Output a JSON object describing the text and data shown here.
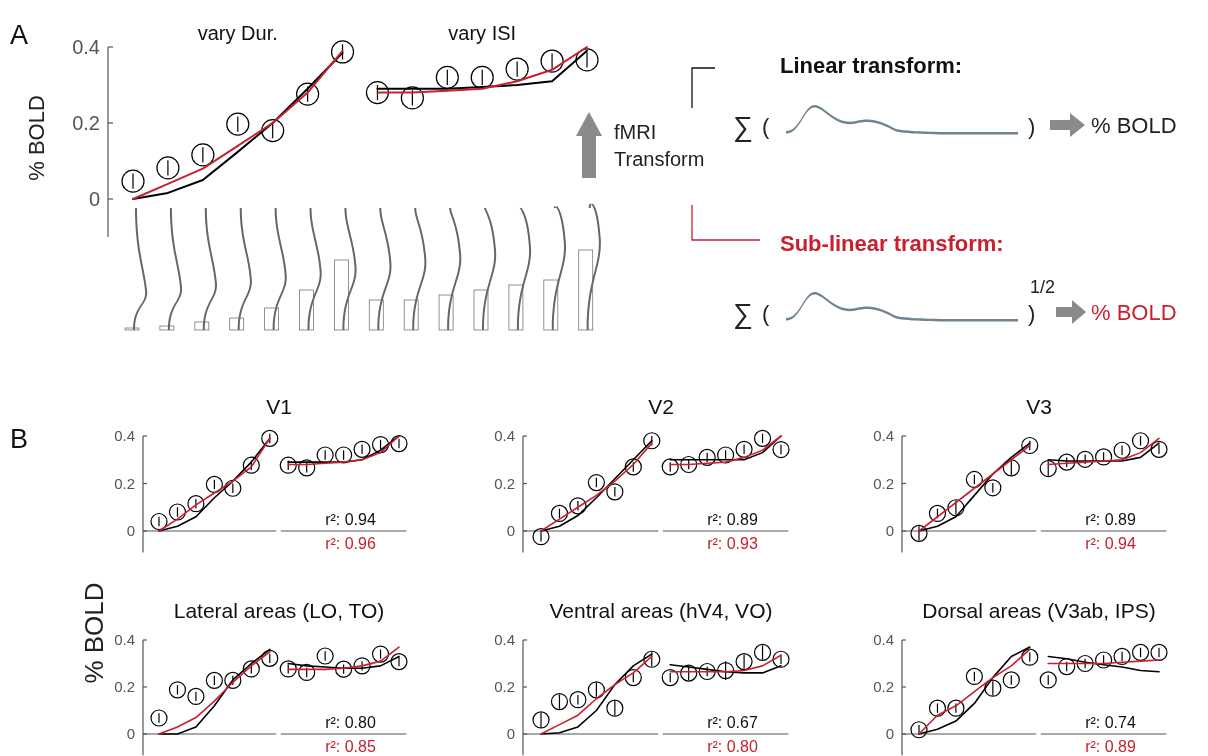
{
  "chart_data": [
    {
      "type": "scatter",
      "ylabel": "% BOLD",
      "annotations": [
        "A",
        "vary Dur.",
        "vary ISI"
      ],
      "categories": [
        null,
        null,
        null,
        null,
        null,
        null,
        null,
        null,
        null,
        null,
        null,
        null,
        null,
        null
      ],
      "ylim": [
        -0.1,
        0.4
      ],
      "yticks": [
        0,
        0.2,
        0.4
      ],
      "series": [
        {
          "type": "scatter",
          "marker": "circle",
          "color": "#000000",
          "values": [
            0.047,
            0.082,
            0.116,
            0.197,
            0.18,
            0.276,
            0.387,
            null,
            null,
            null,
            null,
            null,
            null,
            null
          ],
          "errors": [
            0.02,
            0.02,
            0.02,
            0.02,
            0.02,
            0.02,
            0.02,
            null,
            null,
            null,
            null,
            null,
            null,
            null
          ]
        },
        {
          "type": "scatter",
          "marker": "circle",
          "color": "#000000",
          "values": [
            null,
            null,
            null,
            null,
            null,
            null,
            null,
            0.28,
            0.266,
            0.32,
            0.32,
            0.342,
            0.363,
            0.366
          ],
          "errors": [
            null,
            null,
            null,
            null,
            null,
            null,
            null,
            0.02,
            0.02,
            0.02,
            0.02,
            0.02,
            0.02,
            0.02
          ]
        },
        {
          "type": "line",
          "color": "#000000",
          "values": [
            0,
            0.016,
            0.05,
            0.124,
            0.2,
            0.29,
            0.385,
            null,
            null,
            null,
            null,
            null,
            null,
            null
          ]
        },
        {
          "type": "line",
          "color": "#000000",
          "values": [
            null,
            null,
            null,
            null,
            null,
            null,
            null,
            0.29,
            0.29,
            0.29,
            0.295,
            0.3,
            0.31,
            0.39
          ]
        },
        {
          "type": "line",
          "color": "#c8202f",
          "values": [
            0,
            0.04,
            0.08,
            0.14,
            0.2,
            0.28,
            0.39,
            null,
            null,
            null,
            null,
            null,
            null,
            null
          ]
        },
        {
          "type": "line",
          "color": "#c8202f",
          "values": [
            null,
            null,
            null,
            null,
            null,
            null,
            null,
            0.28,
            0.28,
            0.285,
            0.29,
            0.31,
            0.34,
            0.4
          ]
        }
      ]
    },
    {
      "type": "scatter",
      "title": "V1",
      "ylabel": "% BOLD",
      "annotations": [
        "r²: 0.94",
        "r²: 0.96",
        "B"
      ],
      "categories": [
        null,
        null,
        null,
        null,
        null,
        null,
        null,
        null,
        null,
        null,
        null,
        null,
        null,
        null
      ],
      "ylim": [
        -0.09,
        0.4
      ],
      "yticks": [
        0,
        0.2,
        0.4
      ],
      "series": [
        {
          "type": "scatter",
          "marker": "circle",
          "color": "#000000",
          "values": [
            0.04,
            0.08,
            0.115,
            0.196,
            0.18,
            0.277,
            0.39,
            null,
            null,
            null,
            null,
            null,
            null,
            null
          ],
          "errors": [
            0.02,
            0.02,
            0.02,
            0.02,
            0.02,
            0.02,
            0.02,
            null,
            null,
            null,
            null,
            null,
            null,
            null
          ]
        },
        {
          "type": "scatter",
          "marker": "circle",
          "color": "#000000",
          "values": [
            null,
            null,
            null,
            null,
            null,
            null,
            null,
            0.277,
            0.266,
            0.32,
            0.32,
            0.344,
            0.364,
            0.368
          ],
          "errors": [
            null,
            null,
            null,
            null,
            null,
            null,
            null,
            0.02,
            0.02,
            0.02,
            0.02,
            0.02,
            0.02,
            0.02
          ]
        },
        {
          "type": "line",
          "color": "#000000",
          "values": [
            0,
            0.02,
            0.06,
            0.14,
            0.21,
            0.29,
            0.39,
            null,
            null,
            null,
            null,
            null,
            null,
            null
          ]
        },
        {
          "type": "line",
          "color": "#000000",
          "values": [
            null,
            null,
            null,
            null,
            null,
            null,
            null,
            0.29,
            0.29,
            0.29,
            0.29,
            0.3,
            0.34,
            0.4
          ]
        },
        {
          "type": "line",
          "color": "#c8202f",
          "values": [
            0,
            0.05,
            0.11,
            0.16,
            0.21,
            0.27,
            0.39,
            null,
            null,
            null,
            null,
            null,
            null,
            null
          ]
        },
        {
          "type": "line",
          "color": "#c8202f",
          "values": [
            null,
            null,
            null,
            null,
            null,
            null,
            null,
            0.28,
            0.28,
            0.285,
            0.29,
            0.3,
            0.33,
            0.4
          ]
        }
      ]
    },
    {
      "type": "scatter",
      "title": "V2",
      "annotations": [
        "r²: 0.89",
        "r²: 0.93"
      ],
      "categories": [
        null,
        null,
        null,
        null,
        null,
        null,
        null,
        null,
        null,
        null,
        null,
        null,
        null,
        null
      ],
      "ylim": [
        -0.09,
        0.4
      ],
      "yticks": [
        0,
        0.2,
        0.4
      ],
      "series": [
        {
          "type": "scatter",
          "marker": "circle",
          "color": "#000000",
          "values": [
            -0.024,
            0.074,
            0.106,
            0.204,
            0.165,
            0.27,
            0.38,
            null,
            null,
            null,
            null,
            null,
            null,
            null
          ],
          "errors": [
            0.02,
            0.02,
            0.02,
            0.02,
            0.02,
            0.02,
            0.02,
            null,
            null,
            null,
            null,
            null,
            null,
            null
          ]
        },
        {
          "type": "scatter",
          "marker": "circle",
          "color": "#000000",
          "values": [
            null,
            null,
            null,
            null,
            null,
            null,
            null,
            0.27,
            0.28,
            0.31,
            0.32,
            0.344,
            0.39,
            0.343
          ],
          "errors": [
            null,
            null,
            null,
            null,
            null,
            null,
            null,
            0.02,
            0.02,
            0.02,
            0.02,
            0.02,
            0.02,
            0.02
          ]
        },
        {
          "type": "line",
          "color": "#000000",
          "values": [
            0,
            0.02,
            0.065,
            0.14,
            0.22,
            0.3,
            0.38,
            null,
            null,
            null,
            null,
            null,
            null,
            null
          ]
        },
        {
          "type": "line",
          "color": "#000000",
          "values": [
            null,
            null,
            null,
            null,
            null,
            null,
            null,
            0.3,
            0.3,
            0.3,
            0.3,
            0.3,
            0.33,
            0.4
          ]
        },
        {
          "type": "line",
          "color": "#c8202f",
          "values": [
            0,
            0.05,
            0.1,
            0.15,
            0.21,
            0.28,
            0.37,
            null,
            null,
            null,
            null,
            null,
            null,
            null
          ]
        },
        {
          "type": "line",
          "color": "#c8202f",
          "values": [
            null,
            null,
            null,
            null,
            null,
            null,
            null,
            0.28,
            0.28,
            0.285,
            0.29,
            0.31,
            0.34,
            0.4
          ]
        }
      ]
    },
    {
      "type": "scatter",
      "title": "V3",
      "annotations": [
        "r²: 0.89",
        "r²: 0.94"
      ],
      "categories": [
        null,
        null,
        null,
        null,
        null,
        null,
        null,
        null,
        null,
        null,
        null,
        null,
        null,
        null
      ],
      "ylim": [
        -0.09,
        0.4
      ],
      "yticks": [
        0,
        0.2,
        0.4
      ],
      "series": [
        {
          "type": "scatter",
          "marker": "circle",
          "color": "#000000",
          "values": [
            -0.01,
            0.074,
            0.098,
            0.217,
            0.182,
            0.266,
            0.36,
            null,
            null,
            null,
            null,
            null,
            null,
            null
          ],
          "errors": [
            0.03,
            0.02,
            0.03,
            0.02,
            0.02,
            0.03,
            0.02,
            null,
            null,
            null,
            null,
            null,
            null,
            null
          ]
        },
        {
          "type": "scatter",
          "marker": "circle",
          "color": "#000000",
          "values": [
            null,
            null,
            null,
            null,
            null,
            null,
            null,
            0.263,
            0.29,
            0.302,
            0.312,
            0.34,
            0.38,
            0.344
          ],
          "errors": [
            null,
            null,
            null,
            null,
            null,
            null,
            null,
            0.03,
            0.02,
            0.02,
            0.02,
            0.02,
            0.02,
            0.02
          ]
        },
        {
          "type": "line",
          "color": "#000000",
          "values": [
            0,
            0.02,
            0.06,
            0.15,
            0.24,
            0.31,
            0.37,
            null,
            null,
            null,
            null,
            null,
            null,
            null
          ]
        },
        {
          "type": "line",
          "color": "#000000",
          "values": [
            null,
            null,
            null,
            null,
            null,
            null,
            null,
            0.3,
            0.295,
            0.295,
            0.295,
            0.295,
            0.31,
            0.37
          ]
        },
        {
          "type": "line",
          "color": "#c8202f",
          "values": [
            0,
            0.06,
            0.12,
            0.18,
            0.24,
            0.3,
            0.36,
            null,
            null,
            null,
            null,
            null,
            null,
            null
          ]
        },
        {
          "type": "line",
          "color": "#c8202f",
          "values": [
            null,
            null,
            null,
            null,
            null,
            null,
            null,
            0.28,
            0.285,
            0.29,
            0.295,
            0.3,
            0.33,
            0.39
          ]
        }
      ]
    },
    {
      "type": "scatter",
      "title": "Lateral areas (LO, TO)",
      "annotations": [
        "r²: 0.80",
        "r²: 0.85"
      ],
      "categories": [
        null,
        null,
        null,
        null,
        null,
        null,
        null,
        null,
        null,
        null,
        null,
        null,
        null,
        null
      ],
      "ylim": [
        -0.09,
        0.4
      ],
      "yticks": [
        0,
        0.2,
        0.4
      ],
      "series": [
        {
          "type": "scatter",
          "marker": "circle",
          "color": "#000000",
          "values": [
            0.068,
            0.188,
            0.16,
            0.228,
            0.228,
            0.277,
            0.322,
            null,
            null,
            null,
            null,
            null,
            null,
            null
          ],
          "errors": [
            0.02,
            0.02,
            0.02,
            0.02,
            0.02,
            0.02,
            0.02,
            null,
            null,
            null,
            null,
            null,
            null,
            null
          ]
        },
        {
          "type": "scatter",
          "marker": "circle",
          "color": "#000000",
          "values": [
            null,
            null,
            null,
            null,
            null,
            null,
            null,
            0.277,
            0.262,
            0.332,
            0.276,
            0.29,
            0.34,
            0.308
          ],
          "errors": [
            null,
            null,
            null,
            null,
            null,
            null,
            null,
            0.02,
            0.02,
            0.02,
            0.02,
            0.02,
            0.02,
            0.02
          ]
        },
        {
          "type": "line",
          "color": "#000000",
          "values": [
            0,
            0,
            0.03,
            0.12,
            0.23,
            0.3,
            0.36,
            null,
            null,
            null,
            null,
            null,
            null,
            null
          ]
        },
        {
          "type": "line",
          "color": "#000000",
          "values": [
            null,
            null,
            null,
            null,
            null,
            null,
            null,
            0.3,
            0.29,
            0.285,
            0.28,
            0.28,
            0.29,
            0.33
          ]
        },
        {
          "type": "line",
          "color": "#c8202f",
          "values": [
            0,
            0.03,
            0.07,
            0.14,
            0.22,
            0.29,
            0.35,
            null,
            null,
            null,
            null,
            null,
            null,
            null
          ]
        },
        {
          "type": "line",
          "color": "#c8202f",
          "values": [
            null,
            null,
            null,
            null,
            null,
            null,
            null,
            0.275,
            0.275,
            0.275,
            0.28,
            0.29,
            0.31,
            0.37
          ]
        }
      ]
    },
    {
      "type": "scatter",
      "title": "Ventral areas (hV4, VO)",
      "annotations": [
        "r²: 0.67",
        "r²: 0.80"
      ],
      "categories": [
        null,
        null,
        null,
        null,
        null,
        null,
        null,
        null,
        null,
        null,
        null,
        null,
        null,
        null
      ],
      "ylim": [
        -0.09,
        0.4
      ],
      "yticks": [
        0,
        0.2,
        0.4
      ],
      "series": [
        {
          "type": "scatter",
          "marker": "circle",
          "color": "#000000",
          "values": [
            0.06,
            0.138,
            0.146,
            0.188,
            0.11,
            0.24,
            0.318,
            null,
            null,
            null,
            null,
            null,
            null,
            null
          ],
          "errors": [
            0.03,
            0.03,
            0.02,
            0.03,
            0.03,
            0.02,
            0.03,
            null,
            null,
            null,
            null,
            null,
            null,
            null
          ]
        },
        {
          "type": "scatter",
          "marker": "circle",
          "color": "#000000",
          "values": [
            null,
            null,
            null,
            null,
            null,
            null,
            null,
            0.24,
            0.259,
            0.266,
            0.27,
            0.308,
            0.347,
            0.318
          ],
          "errors": [
            null,
            null,
            null,
            null,
            null,
            null,
            null,
            0.02,
            0.03,
            0.02,
            0.04,
            0.03,
            0.03,
            0.02
          ]
        },
        {
          "type": "line",
          "color": "#000000",
          "values": [
            0,
            0.005,
            0.03,
            0.1,
            0.21,
            0.29,
            0.34,
            null,
            null,
            null,
            null,
            null,
            null,
            null
          ]
        },
        {
          "type": "line",
          "color": "#000000",
          "values": [
            null,
            null,
            null,
            null,
            null,
            null,
            null,
            0.295,
            0.285,
            0.275,
            0.265,
            0.26,
            0.26,
            0.29
          ]
        },
        {
          "type": "line",
          "color": "#c8202f",
          "values": [
            0,
            0.04,
            0.08,
            0.15,
            0.21,
            0.26,
            0.33,
            null,
            null,
            null,
            null,
            null,
            null,
            null
          ]
        },
        {
          "type": "line",
          "color": "#c8202f",
          "values": [
            null,
            null,
            null,
            null,
            null,
            null,
            null,
            0.265,
            0.265,
            0.265,
            0.265,
            0.27,
            0.29,
            0.335
          ]
        }
      ]
    },
    {
      "type": "scatter",
      "title": "Dorsal areas (V3ab, IPS)",
      "annotations": [
        "r²: 0.74",
        "r²: 0.89"
      ],
      "categories": [
        null,
        null,
        null,
        null,
        null,
        null,
        null,
        null,
        null,
        null,
        null,
        null,
        null,
        null
      ],
      "ylim": [
        -0.09,
        0.4
      ],
      "yticks": [
        0,
        0.2,
        0.4
      ],
      "series": [
        {
          "type": "scatter",
          "marker": "circle",
          "color": "#000000",
          "values": [
            0.018,
            0.11,
            0.11,
            0.245,
            0.195,
            0.23,
            0.327,
            null,
            null,
            null,
            null,
            null,
            null,
            null
          ],
          "errors": [
            0.02,
            0.02,
            0.02,
            0.02,
            0.03,
            0.02,
            0.02,
            null,
            null,
            null,
            null,
            null,
            null,
            null
          ]
        },
        {
          "type": "scatter",
          "marker": "circle",
          "color": "#000000",
          "values": [
            null,
            null,
            null,
            null,
            null,
            null,
            null,
            0.23,
            0.287,
            0.3,
            0.315,
            0.33,
            0.347,
            0.347
          ],
          "errors": [
            null,
            null,
            null,
            null,
            null,
            null,
            null,
            0.02,
            0.02,
            0.02,
            0.02,
            0.02,
            0.02,
            0.02
          ]
        },
        {
          "type": "line",
          "color": "#000000",
          "values": [
            0,
            0.02,
            0.055,
            0.13,
            0.24,
            0.33,
            0.37,
            null,
            null,
            null,
            null,
            null,
            null,
            null
          ]
        },
        {
          "type": "line",
          "color": "#000000",
          "values": [
            null,
            null,
            null,
            null,
            null,
            null,
            null,
            0.33,
            0.32,
            0.305,
            0.295,
            0.285,
            0.27,
            0.265
          ]
        },
        {
          "type": "line",
          "color": "#c8202f",
          "values": [
            0,
            0.08,
            0.12,
            0.18,
            0.24,
            0.29,
            0.36,
            null,
            null,
            null,
            null,
            null,
            null,
            null
          ]
        },
        {
          "type": "line",
          "color": "#c8202f",
          "values": [
            null,
            null,
            null,
            null,
            null,
            null,
            null,
            0.3,
            0.3,
            0.3,
            0.3,
            0.305,
            0.31,
            0.315
          ]
        }
      ]
    },
    {
      "type": "other",
      "annotations": [
        "fMRI",
        "Transform",
        "Linear transform:",
        "∑",
        "(",
        ")",
        "% BOLD",
        "Sub-linear transform:",
        "∑",
        "(",
        ")",
        "1/2",
        "% BOLD"
      ]
    }
  ]
}
